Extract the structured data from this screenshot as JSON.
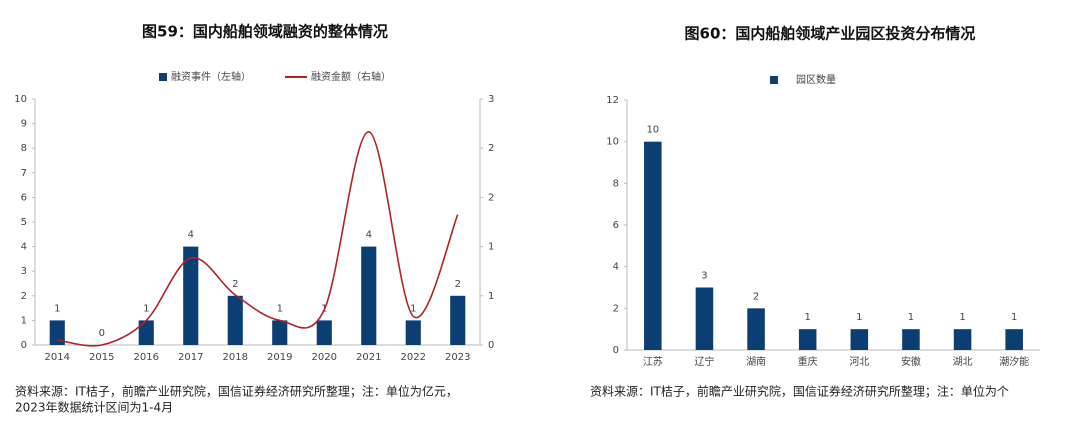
{
  "chart_data": [
    {
      "type": "bar_line",
      "title": "图59：国内船舶领域融资的整体情况",
      "categories": [
        "2014",
        "2015",
        "2016",
        "2017",
        "2018",
        "2019",
        "2020",
        "2021",
        "2022",
        "2023"
      ],
      "series": [
        {
          "name": "融资事件（左轴）",
          "color": "#0b3f73",
          "kind": "bar",
          "values": [
            1,
            0,
            1,
            4,
            2,
            1,
            1,
            4,
            1,
            2
          ]
        },
        {
          "name": "融资金额（右轴）",
          "color": "#b22222",
          "kind": "line",
          "axis": "y2",
          "values": [
            0.06,
            0,
            0.3,
            1.06,
            0.61,
            0.3,
            0.43,
            2.6,
            0.35,
            1.59
          ]
        }
      ],
      "ylim": [
        0,
        10
      ],
      "yticks": [
        0,
        1,
        2,
        3,
        4,
        5,
        6,
        7,
        8,
        9,
        10
      ],
      "y2lim": [
        0,
        3
      ],
      "y2ticks": [
        0,
        {
          "value": 0.6,
          "label": "1"
        },
        {
          "value": 1.2,
          "label": "1"
        },
        {
          "value": 1.8,
          "label": "2"
        },
        {
          "value": 2.4,
          "label": "2"
        },
        3
      ],
      "notes": [
        "资料来源：IT桔子，前瞻产业研究院，国信证券经济研究所整理；注：单位为亿元，",
        "2023年数据统计区间为1-4月"
      ]
    },
    {
      "type": "bar",
      "title": "图60：国内船舶领域产业园区投资分布情况",
      "categories": [
        "江苏",
        "辽宁",
        "湖南",
        "重庆",
        "河北",
        "安徽",
        "湖北",
        "潮汐能"
      ],
      "series": [
        {
          "name": "园区数量",
          "color": "#0b3f73",
          "kind": "bar",
          "values": [
            10,
            3,
            2,
            1,
            1,
            1,
            1,
            1
          ]
        }
      ],
      "ylim": [
        0,
        12
      ],
      "yticks": [
        0,
        2,
        4,
        6,
        8,
        10,
        12
      ],
      "notes": [
        "资料来源：IT桔子，前瞻产业研究院，国信证券经济研究所整理；注：单位为个"
      ]
    }
  ]
}
